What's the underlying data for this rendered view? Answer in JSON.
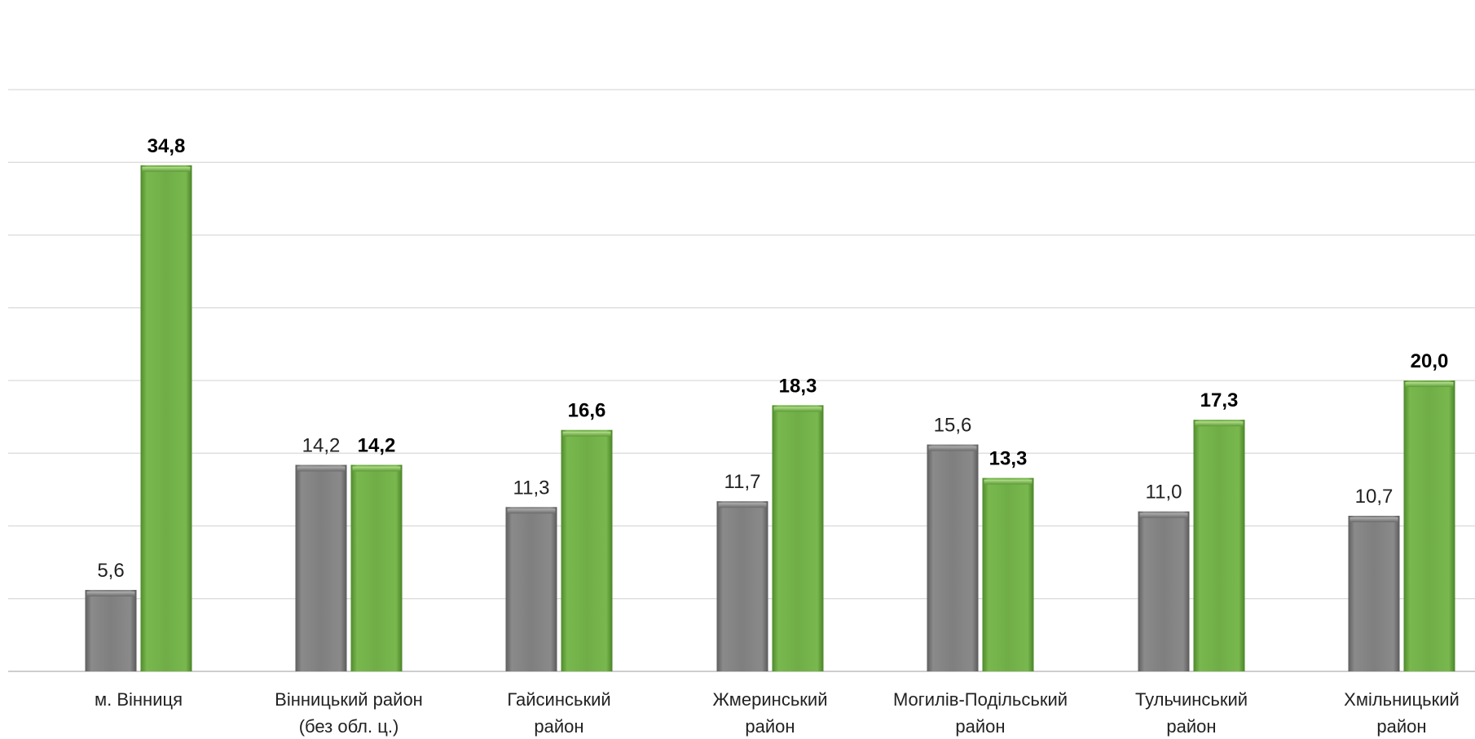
{
  "chart_data": {
    "type": "bar",
    "title": "",
    "xlabel": "",
    "ylabel": "",
    "ylim": [
      0,
      40
    ],
    "grid": true,
    "legend": "none",
    "categories": [
      [
        "м. Вінниця"
      ],
      [
        "Вінницький район",
        "(без обл. ц.)"
      ],
      [
        "Гайсинський",
        "район"
      ],
      [
        "Жмеринський",
        "район"
      ],
      [
        "Могилів-Подільський",
        "район"
      ],
      [
        "Тульчинський",
        "район"
      ],
      [
        "Хмільницький",
        "район"
      ]
    ],
    "series": [
      {
        "color": "#7f7f7f",
        "values": [
          5.6,
          14.2,
          11.3,
          11.7,
          15.6,
          11.0,
          10.7
        ],
        "labels": [
          "5,6",
          "14,2",
          "11,3",
          "11,7",
          "15,6",
          "11,0",
          "10,7"
        ]
      },
      {
        "color": "#70ad47",
        "values": [
          34.8,
          14.2,
          16.6,
          18.3,
          13.3,
          17.3,
          20.0
        ],
        "labels": [
          "34,8",
          "14,2",
          "16,6",
          "18,3",
          "13,3",
          "17,3",
          "20,0"
        ]
      }
    ]
  }
}
